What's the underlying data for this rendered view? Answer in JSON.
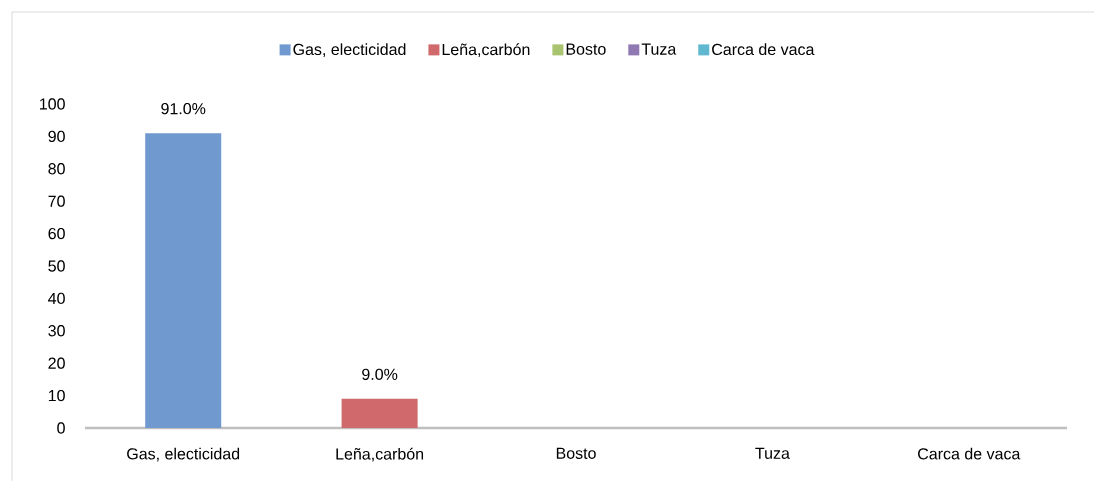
{
  "chart_data": {
    "type": "bar",
    "categories": [
      "Gas, electicidad",
      "Leña,carbón",
      "Bosto",
      "Tuza",
      "Carca de vaca"
    ],
    "series": [
      {
        "name": "Gas, electicidad",
        "color": "#7099d0",
        "values": [
          91,
          null,
          null,
          null,
          null
        ],
        "value_labels": [
          "91.0%",
          null,
          null,
          null,
          null
        ]
      },
      {
        "name": "Leña,carbón",
        "color": "#d0696b",
        "values": [
          null,
          9,
          null,
          null,
          null
        ],
        "value_labels": [
          null,
          "9.0%",
          null,
          null,
          null
        ]
      },
      {
        "name": "Bosto",
        "color": "#a9c46e",
        "values": [
          null,
          null,
          0,
          null,
          null
        ]
      },
      {
        "name": "Tuza",
        "color": "#9079b3",
        "values": [
          null,
          null,
          null,
          0,
          null
        ]
      },
      {
        "name": "Carca de vaca",
        "color": "#5fb8d0",
        "values": [
          null,
          null,
          null,
          null,
          0
        ]
      }
    ],
    "ylim": [
      0,
      100
    ],
    "yticks": [
      0,
      10,
      20,
      30,
      40,
      50,
      60,
      70,
      80,
      90,
      100
    ],
    "legend": "top"
  }
}
